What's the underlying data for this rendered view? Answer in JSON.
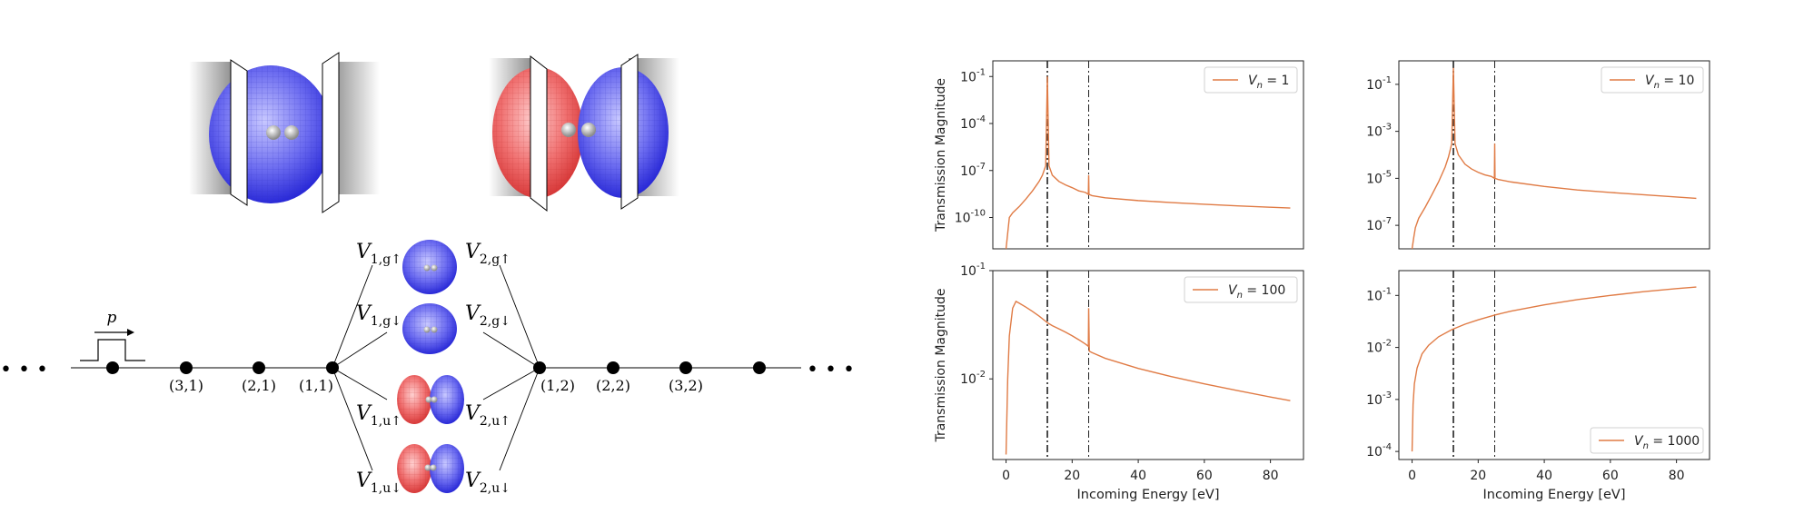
{
  "diagram": {
    "pulse_label": "p",
    "ellipsis": "• • •",
    "node_labels": [
      "(3,1)",
      "(2,1)",
      "(1,1)",
      "(1,2)",
      "(2,2)",
      "(3,2)"
    ],
    "coupling_left": [
      {
        "base": "V",
        "sub": "1,g↑"
      },
      {
        "base": "V",
        "sub": "1,g↓"
      },
      {
        "base": "V",
        "sub": "1,u↑"
      },
      {
        "base": "V",
        "sub": "1,u↓"
      }
    ],
    "coupling_right": [
      {
        "base": "V",
        "sub": "2,g↑"
      },
      {
        "base": "V",
        "sub": "2,g↓"
      },
      {
        "base": "V",
        "sub": "2,u↑"
      },
      {
        "base": "V",
        "sub": "2,u↓"
      }
    ],
    "colors": {
      "bonding": "#4a4aee",
      "antibonding": "#ee4a4a"
    }
  },
  "chart_data": [
    {
      "type": "line",
      "panel": "top-left",
      "legend": "V_n = 1",
      "legend_base": "V",
      "legend_sub": "n",
      "legend_value": " = 1",
      "legend_position": "top-right",
      "ylabel": "Transmission Magnitude",
      "xlabel": "",
      "yscale": "log",
      "ylim": [
        1e-12,
        1.0
      ],
      "yticks": [
        {
          "v": 0.1,
          "label": "10^-1"
        },
        {
          "v": 0.0001,
          "label": "10^-4"
        },
        {
          "v": 1e-07,
          "label": "10^-7"
        },
        {
          "v": 1e-10,
          "label": "10^-10"
        }
      ],
      "xlim": [
        -4,
        90
      ],
      "xticks": [],
      "vlines": [
        12.5,
        25
      ],
      "color": "#e07b45",
      "x": [
        0,
        0.5,
        1,
        2,
        4,
        6,
        8,
        10,
        11,
        12,
        12.5,
        13,
        14,
        16,
        18,
        20,
        22,
        24,
        24.9,
        25,
        25.1,
        26,
        30,
        40,
        50,
        60,
        70,
        80,
        86
      ],
      "y": [
        1e-12,
        1e-11,
        1e-10,
        2e-10,
        5e-10,
        1.5e-09,
        5e-09,
        2e-08,
        5e-08,
        2e-07,
        0.1,
        2e-07,
        5e-08,
        2e-08,
        1.2e-08,
        8e-09,
        5e-09,
        4e-09,
        3e-09,
        5e-08,
        3e-09,
        2.5e-09,
        1.8e-09,
        1.2e-09,
        9e-10,
        7e-10,
        5.5e-10,
        4.5e-10,
        4e-10
      ]
    },
    {
      "type": "line",
      "panel": "top-right",
      "legend": "V_n = 10",
      "legend_base": "V",
      "legend_sub": "n",
      "legend_value": " = 10",
      "legend_position": "top-right",
      "ylabel": "",
      "xlabel": "",
      "yscale": "log",
      "ylim": [
        1e-08,
        1.0
      ],
      "yticks": [
        {
          "v": 0.1,
          "label": "10^-1"
        },
        {
          "v": 0.001,
          "label": "10^-3"
        },
        {
          "v": 1e-05,
          "label": "10^-5"
        },
        {
          "v": 1e-07,
          "label": "10^-7"
        }
      ],
      "xlim": [
        -4,
        90
      ],
      "xticks": [],
      "vlines": [
        12.5,
        25
      ],
      "color": "#e07b45",
      "x": [
        0,
        0.5,
        1,
        2,
        4,
        6,
        8,
        10,
        11,
        12,
        12.5,
        13,
        14,
        16,
        18,
        20,
        22,
        24,
        24.9,
        25,
        25.1,
        26,
        30,
        40,
        50,
        60,
        70,
        80,
        86
      ],
      "y": [
        1e-08,
        3e-08,
        8e-08,
        2e-07,
        6e-07,
        2e-06,
        7e-06,
        3e-05,
        8e-05,
        0.0003,
        0.5,
        0.0003,
        0.0001,
        4e-05,
        2.5e-05,
        1.8e-05,
        1.4e-05,
        1.2e-05,
        1e-05,
        0.0003,
        1e-05,
        9e-06,
        7e-06,
        4.5e-06,
        3.2e-06,
        2.5e-06,
        2e-06,
        1.6e-06,
        1.4e-06
      ]
    },
    {
      "type": "line",
      "panel": "bottom-left",
      "legend": "V_n = 100",
      "legend_base": "V",
      "legend_sub": "n",
      "legend_value": " = 100",
      "legend_position": "top-right",
      "ylabel": "Transmission Magnitude",
      "xlabel": "Incoming Energy [eV]",
      "yscale": "log",
      "ylim": [
        0.0018,
        0.1
      ],
      "yticks": [
        {
          "v": 0.1,
          "label": "10^-1"
        },
        {
          "v": 0.01,
          "label": "10^-2"
        }
      ],
      "xlim": [
        -4,
        90
      ],
      "xticks": [
        0,
        20,
        40,
        60,
        80
      ],
      "vlines": [
        12.5,
        25
      ],
      "color": "#e07b45",
      "x": [
        0,
        0.5,
        1,
        2,
        3,
        4,
        6,
        8,
        10,
        12,
        12.5,
        14,
        16,
        18,
        20,
        22,
        24,
        24.9,
        25,
        25.2,
        26,
        30,
        40,
        50,
        60,
        70,
        80,
        86
      ],
      "y": [
        0.002,
        0.01,
        0.025,
        0.045,
        0.052,
        0.05,
        0.046,
        0.042,
        0.038,
        0.034,
        0.033,
        0.031,
        0.029,
        0.027,
        0.025,
        0.023,
        0.021,
        0.02,
        0.045,
        0.018,
        0.0175,
        0.0155,
        0.0125,
        0.0105,
        0.009,
        0.0078,
        0.0068,
        0.0063
      ]
    },
    {
      "type": "line",
      "panel": "bottom-right",
      "legend": "V_n = 1000",
      "legend_base": "V",
      "legend_sub": "n",
      "legend_value": " = 1000",
      "legend_position": "bottom-right",
      "ylabel": "",
      "xlabel": "Incoming Energy [eV]",
      "yscale": "log",
      "ylim": [
        7e-05,
        0.3
      ],
      "yticks": [
        {
          "v": 0.1,
          "label": "10^-1"
        },
        {
          "v": 0.01,
          "label": "10^-2"
        },
        {
          "v": 0.001,
          "label": "10^-3"
        },
        {
          "v": 0.0001,
          "label": "10^-4"
        }
      ],
      "xlim": [
        -4,
        90
      ],
      "xticks": [
        0,
        20,
        40,
        60,
        80
      ],
      "vlines": [
        12.5,
        25
      ],
      "color": "#e07b45",
      "x": [
        0,
        0.3,
        0.7,
        1.5,
        3,
        5,
        8,
        12,
        16,
        20,
        25,
        30,
        40,
        50,
        60,
        70,
        80,
        86
      ],
      "y": [
        0.0001,
        0.0008,
        0.002,
        0.004,
        0.0075,
        0.011,
        0.016,
        0.022,
        0.028,
        0.034,
        0.042,
        0.05,
        0.066,
        0.083,
        0.1,
        0.118,
        0.135,
        0.145
      ]
    }
  ]
}
